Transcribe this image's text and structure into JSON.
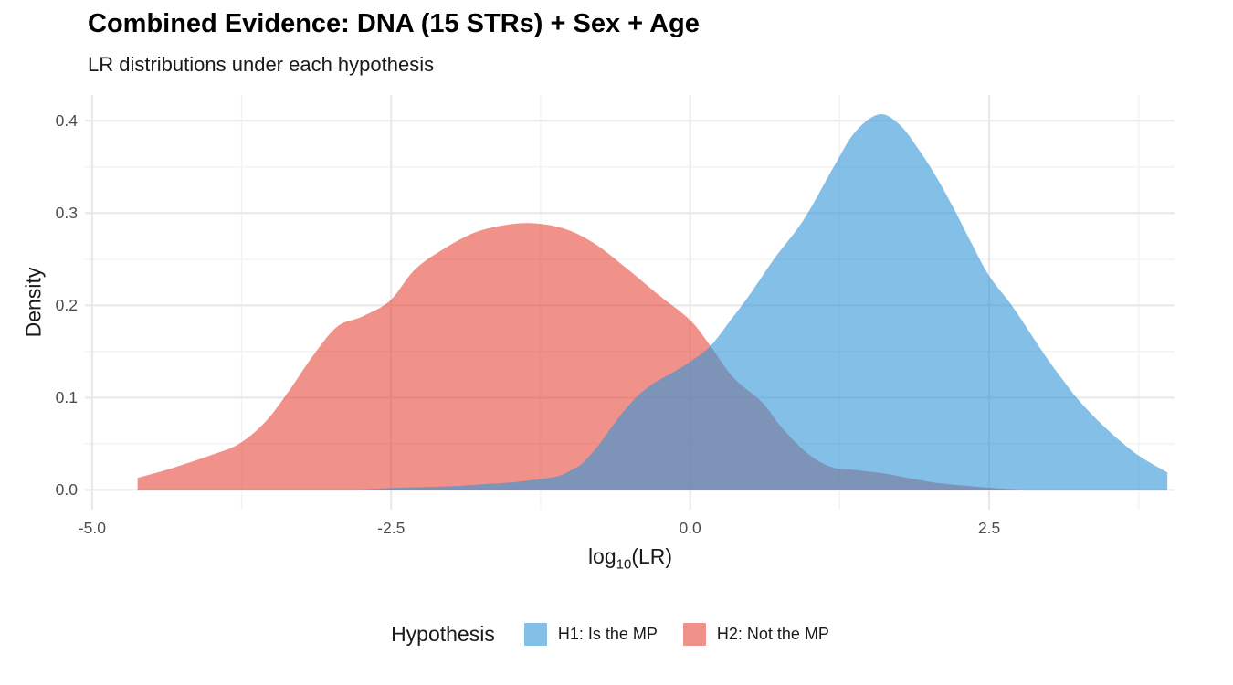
{
  "header": {
    "title": "Combined Evidence: DNA (15 STRs) + Sex + Age",
    "subtitle": "LR distributions under each hypothesis"
  },
  "chart_data": {
    "type": "area",
    "title": "Combined Evidence: DNA (15 STRs) + Sex + Age",
    "subtitle": "LR distributions under each hypothesis",
    "xlabel": "log10(LR)",
    "xlabel_parts": {
      "prefix": "log",
      "sub": "10",
      "suffix": "(LR)"
    },
    "ylabel": "Density",
    "xlim": [
      -5.06,
      4.05
    ],
    "ylim": [
      -0.0214,
      0.428
    ],
    "x_tick_values": [
      -5.0,
      -2.5,
      0.0,
      2.5
    ],
    "x_tick_labels": [
      "-5.0",
      "-2.5",
      "0.0",
      "2.5"
    ],
    "y_tick_values": [
      0.0,
      0.1,
      0.2,
      0.3,
      0.4
    ],
    "y_tick_labels": [
      "0.0",
      "0.1",
      "0.2",
      "0.3",
      "0.4"
    ],
    "minor_x_values": [
      -3.75,
      -1.25,
      1.25,
      3.75
    ],
    "minor_y_values": [
      0.05,
      0.15,
      0.25,
      0.35
    ],
    "grid": true,
    "legend_title": "Hypothesis",
    "legend_position": "bottom",
    "colors": {
      "grid_major": "#E7E7E7",
      "grid_minor": "#F2F2F2",
      "tick_text": "#4d4d4d",
      "h1_fill": "rgba(50,148,215,0.6)",
      "h1_flat": "#84BCE3",
      "h2_fill": "rgba(230,72,60,0.6)",
      "h2_flat": "#F09086",
      "overlap_flat": "#7E93B8"
    },
    "series": [
      {
        "name": "H2: Not the MP",
        "hypothesis": "H2",
        "fill": "rgba(230,72,60,0.6)",
        "points": [
          [
            -4.62,
            0.013
          ],
          [
            -4.45,
            0.019
          ],
          [
            -4.25,
            0.027
          ],
          [
            -4.0,
            0.038
          ],
          [
            -3.77,
            0.05
          ],
          [
            -3.55,
            0.074
          ],
          [
            -3.35,
            0.108
          ],
          [
            -3.15,
            0.146
          ],
          [
            -2.95,
            0.177
          ],
          [
            -2.74,
            0.188
          ],
          [
            -2.51,
            0.205
          ],
          [
            -2.3,
            0.239
          ],
          [
            -2.05,
            0.262
          ],
          [
            -1.8,
            0.279
          ],
          [
            -1.55,
            0.287
          ],
          [
            -1.32,
            0.289
          ],
          [
            -1.05,
            0.283
          ],
          [
            -0.8,
            0.267
          ],
          [
            -0.53,
            0.24
          ],
          [
            -0.27,
            0.212
          ],
          [
            0.0,
            0.184
          ],
          [
            0.17,
            0.156
          ],
          [
            0.36,
            0.122
          ],
          [
            0.6,
            0.095
          ],
          [
            0.75,
            0.07
          ],
          [
            0.9,
            0.049
          ],
          [
            1.05,
            0.033
          ],
          [
            1.2,
            0.024
          ],
          [
            1.35,
            0.022
          ],
          [
            1.55,
            0.019
          ],
          [
            1.7,
            0.016
          ],
          [
            1.9,
            0.011
          ],
          [
            2.1,
            0.007
          ],
          [
            2.35,
            0.004
          ],
          [
            2.6,
            0.0015
          ],
          [
            2.75,
            0.0005
          ]
        ]
      },
      {
        "name": "H1: Is the MP",
        "hypothesis": "H1",
        "fill": "rgba(50,148,215,0.6)",
        "points": [
          [
            -2.75,
            0.0005
          ],
          [
            -2.5,
            0.002
          ],
          [
            -2.25,
            0.003
          ],
          [
            -2.0,
            0.004
          ],
          [
            -1.75,
            0.006
          ],
          [
            -1.5,
            0.008
          ],
          [
            -1.3,
            0.011
          ],
          [
            -1.1,
            0.015
          ],
          [
            -1.0,
            0.021
          ],
          [
            -0.9,
            0.029
          ],
          [
            -0.78,
            0.046
          ],
          [
            -0.65,
            0.069
          ],
          [
            -0.55,
            0.086
          ],
          [
            -0.43,
            0.103
          ],
          [
            -0.3,
            0.116
          ],
          [
            -0.15,
            0.127
          ],
          [
            0.0,
            0.139
          ],
          [
            0.17,
            0.156
          ],
          [
            0.35,
            0.186
          ],
          [
            0.5,
            0.212
          ],
          [
            0.7,
            0.25
          ],
          [
            0.95,
            0.293
          ],
          [
            1.2,
            0.35
          ],
          [
            1.38,
            0.388
          ],
          [
            1.58,
            0.407
          ],
          [
            1.75,
            0.396
          ],
          [
            1.9,
            0.371
          ],
          [
            2.05,
            0.341
          ],
          [
            2.2,
            0.306
          ],
          [
            2.35,
            0.268
          ],
          [
            2.5,
            0.232
          ],
          [
            2.7,
            0.198
          ],
          [
            2.95,
            0.149
          ],
          [
            3.1,
            0.122
          ],
          [
            3.25,
            0.097
          ],
          [
            3.45,
            0.07
          ],
          [
            3.65,
            0.047
          ],
          [
            3.8,
            0.033
          ],
          [
            3.99,
            0.019
          ]
        ]
      }
    ],
    "legend_items": [
      {
        "label": "H1: Is the MP",
        "fill": "rgba(50,148,215,0.6)"
      },
      {
        "label": "H2: Not the MP",
        "fill": "rgba(230,72,60,0.6)"
      }
    ]
  }
}
